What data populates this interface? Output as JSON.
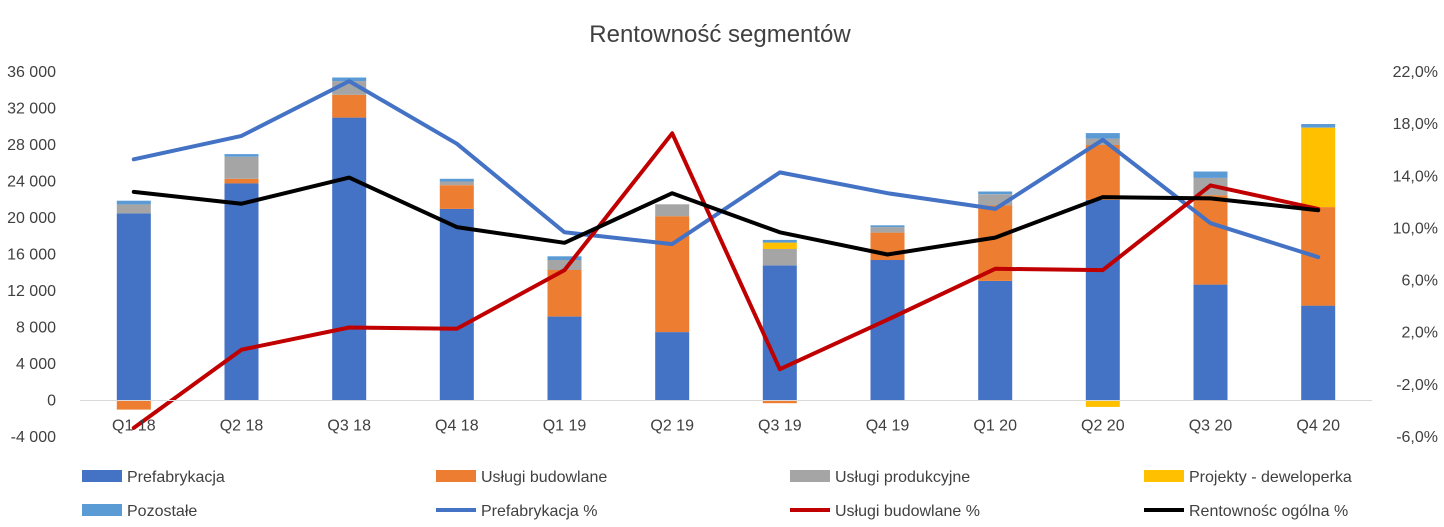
{
  "chart_data": {
    "type": "bar",
    "title": "Rentowność segmentów",
    "categories": [
      "Q1 18",
      "Q2 18",
      "Q3 18",
      "Q4 18",
      "Q1 19",
      "Q2 19",
      "Q3 19",
      "Q4 19",
      "Q1 20",
      "Q2 20",
      "Q3 20",
      "Q4 20"
    ],
    "ylim": [
      -4000,
      36000
    ],
    "y_ticks": [
      -4000,
      0,
      4000,
      8000,
      12000,
      16000,
      20000,
      24000,
      28000,
      32000,
      36000
    ],
    "y_tick_labels": [
      "-4 000",
      "0",
      "4 000",
      "8 000",
      "12 000",
      "16 000",
      "20 000",
      "24 000",
      "28 000",
      "32 000",
      "36 000"
    ],
    "y2lim": [
      -6,
      22
    ],
    "y2_ticks": [
      -6,
      -2,
      2,
      6,
      10,
      14,
      18,
      22
    ],
    "y2_tick_labels": [
      "-6,0%",
      "-2,0%",
      "2,0%",
      "6,0%",
      "10,0%",
      "14,0%",
      "18,0%",
      "22,0%"
    ],
    "legend_position": "bottom",
    "grid": false,
    "bar_series": [
      {
        "name": "Prefabrykacja",
        "color": "#4472C4",
        "values": [
          20500,
          23800,
          31000,
          21000,
          9200,
          7500,
          14800,
          15400,
          13100,
          22000,
          12700,
          10400
        ]
      },
      {
        "name": "Usługi budowlane",
        "color": "#ED7D31",
        "values": [
          -1000,
          500,
          2500,
          2600,
          5100,
          12700,
          -300,
          3000,
          8300,
          6000,
          9800,
          10800
        ]
      },
      {
        "name": "Usługi produkcyjne",
        "color": "#A5A5A5",
        "values": [
          1000,
          2400,
          1500,
          400,
          1100,
          1300,
          1800,
          600,
          1200,
          700,
          1900,
          0
        ]
      },
      {
        "name": "Projekty - deweloperka",
        "color": "#FFC000",
        "values": [
          0,
          0,
          0,
          0,
          0,
          0,
          700,
          0,
          0,
          -700,
          0,
          8700
        ]
      },
      {
        "name": "Pozostałe",
        "color": "#5B9BD5",
        "values": [
          400,
          300,
          400,
          300,
          400,
          0,
          300,
          200,
          300,
          600,
          700,
          400
        ]
      }
    ],
    "line_series": [
      {
        "name": "Prefabrykacja %",
        "color": "#4472C4",
        "values": [
          15.3,
          17.1,
          21.3,
          16.5,
          9.7,
          8.8,
          14.3,
          12.7,
          11.5,
          16.8,
          10.4,
          7.8
        ]
      },
      {
        "name": "Usługi budowlane %",
        "color": "#C00000",
        "values": [
          -5.3,
          0.7,
          2.4,
          2.3,
          6.8,
          17.3,
          -0.8,
          3.0,
          6.9,
          6.8,
          13.3,
          11.5
        ]
      },
      {
        "name": "Rentownośc ogólna %",
        "color": "#000000",
        "values": [
          12.8,
          11.9,
          13.9,
          10.1,
          8.9,
          12.7,
          9.7,
          8.0,
          9.3,
          12.4,
          12.3,
          11.4
        ]
      }
    ]
  }
}
